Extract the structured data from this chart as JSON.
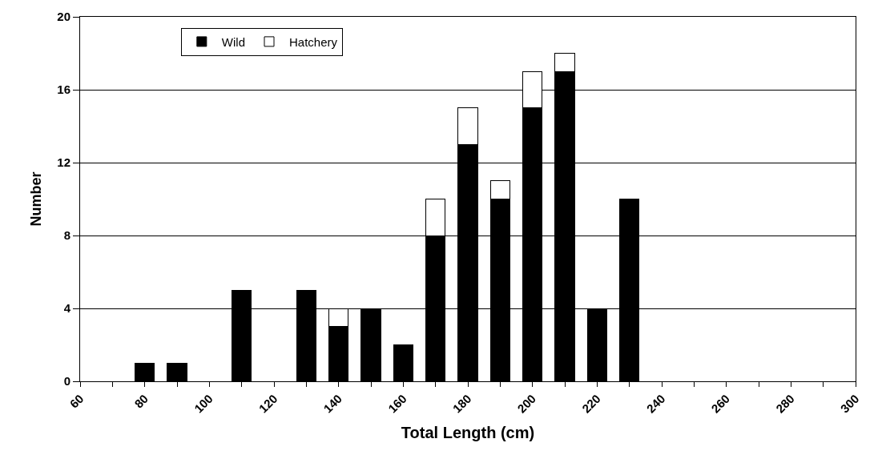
{
  "chart_data": {
    "type": "bar",
    "stacked": true,
    "xlabel": "Total Length (cm)",
    "ylabel": "Number",
    "x": [
      80,
      90,
      110,
      130,
      140,
      150,
      160,
      170,
      180,
      190,
      200,
      210,
      220,
      230
    ],
    "series": [
      {
        "name": "Wild",
        "color": "#000000",
        "values": [
          1,
          1,
          5,
          5,
          3,
          4,
          2,
          8,
          13,
          10,
          15,
          17,
          4,
          10
        ]
      },
      {
        "name": "Hatchery",
        "color": "#ffffff",
        "values": [
          null,
          null,
          null,
          null,
          1,
          null,
          null,
          2,
          2,
          1,
          2,
          1,
          null,
          null
        ]
      }
    ],
    "xlim": [
      60,
      300
    ],
    "xticks": [
      60,
      {
        "value": 70,
        "label": null
      },
      80,
      {
        "value": 90,
        "label": null
      },
      100,
      {
        "value": 110,
        "label": null
      },
      120,
      {
        "value": 130,
        "label": null
      },
      140,
      {
        "value": 150,
        "label": null
      },
      160,
      {
        "value": 170,
        "label": null
      },
      180,
      {
        "value": 190,
        "label": null
      },
      200,
      {
        "value": 210,
        "label": null
      },
      220,
      {
        "value": 230,
        "label": null
      },
      240,
      {
        "value": 250,
        "label": null
      },
      260,
      {
        "value": 270,
        "label": null
      },
      280,
      {
        "value": 290,
        "label": null
      },
      300
    ],
    "ylim": [
      0,
      20
    ],
    "yticks": [
      0,
      4,
      8,
      12,
      16,
      20
    ],
    "grid": "y",
    "legend": "top"
  }
}
